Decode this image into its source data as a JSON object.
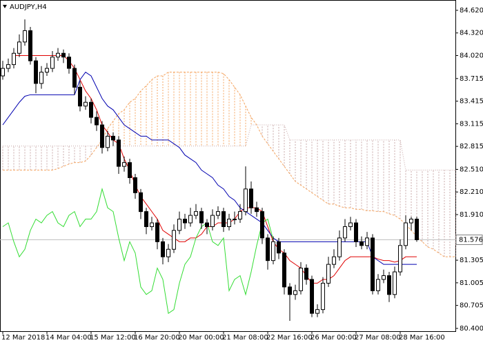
{
  "chart_data": {
    "type": "candlestick",
    "title": "AUDJPY,H4",
    "categories": [
      "12 Mar 2018",
      null,
      null,
      null,
      null,
      null,
      null,
      null,
      "14 Mar 04:00",
      null,
      null,
      null,
      null,
      null,
      null,
      null,
      "15 Mar 12:00",
      null,
      null,
      null,
      null,
      null,
      null,
      null,
      "16 Mar 20:00",
      null,
      null,
      null,
      null,
      null,
      null,
      null,
      "20 Mar 00:00",
      null,
      null,
      null,
      null,
      null,
      null,
      null,
      "21 Mar 08:00",
      null,
      null,
      null,
      null,
      null,
      null,
      null,
      "22 Mar 16:00",
      null,
      null,
      null,
      null,
      null,
      null,
      null,
      "26 Mar 00:00",
      null,
      null,
      null,
      null,
      null,
      null,
      null,
      "27 Mar 08:00",
      null,
      null,
      null,
      null,
      null,
      null,
      null,
      "28 Mar 16:00",
      null,
      null,
      null,
      null,
      null,
      null,
      null,
      null,
      null,
      null
    ],
    "open": [
      83.75,
      83.85,
      83.9,
      84.05,
      84.2,
      84.35,
      83.95,
      83.65,
      83.8,
      83.85,
      84.0,
      84.05,
      84.0,
      83.85,
      83.6,
      83.35,
      83.4,
      83.2,
      83.1,
      82.8,
      82.95,
      82.9,
      82.55,
      82.6,
      82.4,
      82.2,
      81.95,
      81.75,
      81.8,
      81.55,
      81.35,
      81.45,
      81.7,
      81.85,
      81.8,
      81.9,
      81.95,
      81.8,
      81.75,
      81.9,
      81.95,
      81.75,
      81.85,
      81.85,
      81.95,
      82.25,
      82.0,
      81.95,
      81.6,
      81.3,
      81.55,
      81.4,
      80.95,
      80.85,
      80.9,
      81.2,
      81.05,
      80.6,
      80.65,
      81.0,
      81.25,
      81.35,
      81.6,
      81.75,
      81.8,
      81.55,
      81.5,
      81.6,
      80.9,
      81.05,
      81.1,
      80.85,
      81.15,
      81.5,
      81.8,
      81.85,
      null,
      null,
      null,
      null,
      null,
      null,
      null
    ],
    "high": [
      83.95,
      83.98,
      84.12,
      84.3,
      84.5,
      84.4,
      84.0,
      83.88,
      83.92,
      84.08,
      84.12,
      84.1,
      84.05,
      83.9,
      83.68,
      83.48,
      83.45,
      83.28,
      83.15,
      83.02,
      83.0,
      82.95,
      82.68,
      82.65,
      82.45,
      82.25,
      82.0,
      81.88,
      81.85,
      81.6,
      81.52,
      81.78,
      81.95,
      81.92,
      82.0,
      82.05,
      82.0,
      81.85,
      81.98,
      82.02,
      82.0,
      81.92,
      81.95,
      82.05,
      82.55,
      82.35,
      82.08,
      82.0,
      81.65,
      81.62,
      81.6,
      81.45,
      81.0,
      80.98,
      81.28,
      81.25,
      81.1,
      80.72,
      81.08,
      81.35,
      81.45,
      81.7,
      81.85,
      81.88,
      81.85,
      81.62,
      81.68,
      81.65,
      81.12,
      81.18,
      81.15,
      81.22,
      81.58,
      81.9,
      81.88,
      81.88,
      null,
      null,
      null,
      null,
      null,
      null,
      null
    ],
    "low": [
      83.7,
      83.8,
      83.85,
      84.0,
      84.15,
      83.9,
      83.52,
      83.58,
      83.75,
      83.8,
      83.95,
      83.92,
      83.78,
      83.5,
      83.28,
      83.3,
      83.12,
      83.02,
      82.72,
      82.75,
      82.82,
      82.45,
      82.48,
      82.32,
      82.12,
      81.85,
      81.65,
      81.7,
      81.45,
      81.25,
      81.28,
      81.4,
      81.65,
      81.72,
      81.75,
      81.85,
      81.72,
      81.65,
      81.7,
      81.85,
      81.68,
      81.7,
      81.78,
      81.8,
      81.9,
      81.92,
      81.88,
      81.52,
      81.18,
      81.25,
      81.32,
      80.85,
      80.5,
      80.78,
      80.85,
      80.98,
      80.55,
      80.55,
      80.6,
      80.95,
      81.2,
      81.3,
      81.55,
      81.7,
      81.48,
      81.45,
      81.45,
      80.85,
      80.85,
      81.0,
      80.75,
      80.8,
      81.1,
      81.45,
      81.7,
      81.55,
      null,
      null,
      null,
      null,
      null,
      null,
      null
    ],
    "close": [
      83.85,
      83.9,
      84.05,
      84.2,
      84.35,
      83.95,
      83.65,
      83.8,
      83.85,
      84.0,
      84.05,
      84.0,
      83.85,
      83.6,
      83.35,
      83.4,
      83.2,
      83.1,
      82.8,
      82.95,
      82.9,
      82.55,
      82.6,
      82.4,
      82.2,
      81.95,
      81.75,
      81.8,
      81.55,
      81.35,
      81.45,
      81.7,
      81.85,
      81.8,
      81.9,
      81.95,
      81.8,
      81.75,
      81.9,
      81.95,
      81.75,
      81.85,
      81.85,
      81.95,
      82.25,
      82.0,
      81.95,
      81.6,
      81.3,
      81.55,
      81.4,
      80.95,
      80.85,
      80.9,
      81.2,
      81.05,
      80.6,
      80.65,
      81.0,
      81.25,
      81.35,
      81.6,
      81.75,
      81.8,
      81.55,
      81.5,
      81.6,
      80.9,
      81.05,
      81.1,
      80.85,
      81.15,
      81.5,
      81.8,
      81.85,
      81.576,
      null,
      null,
      null,
      null,
      null,
      null,
      null
    ],
    "series": [
      {
        "color": "#e00000",
        "values": [
          null,
          null,
          84.02,
          84.02,
          84.02,
          84.02,
          84.02,
          84.02,
          84.02,
          84.02,
          84.02,
          84.02,
          83.95,
          83.85,
          83.7,
          83.55,
          83.45,
          83.3,
          83.1,
          83.0,
          82.9,
          82.85,
          82.65,
          82.5,
          82.3,
          82.15,
          82.05,
          81.95,
          81.85,
          81.7,
          81.65,
          81.6,
          81.55,
          81.55,
          81.6,
          81.6,
          81.65,
          81.75,
          81.75,
          81.8,
          81.8,
          81.8,
          81.85,
          81.95,
          82.0,
          82.0,
          82.0,
          81.95,
          81.75,
          81.55,
          81.45,
          81.4,
          81.3,
          81.25,
          81.2,
          81.1,
          81.0,
          81.0,
          81.05,
          81.05,
          81.1,
          81.2,
          81.3,
          81.35,
          81.35,
          81.35,
          81.35,
          81.35,
          81.32,
          81.3,
          81.3,
          81.28,
          81.3,
          81.35,
          81.35,
          81.35,
          null,
          null,
          null,
          null,
          null,
          null,
          null
        ]
      },
      {
        "color": "#0000b0",
        "values": [
          83.1,
          83.2,
          83.3,
          83.4,
          83.48,
          83.5,
          83.5,
          83.5,
          83.5,
          83.5,
          83.5,
          83.5,
          83.5,
          83.5,
          83.7,
          83.8,
          83.75,
          83.6,
          83.45,
          83.35,
          83.3,
          83.2,
          83.1,
          83.05,
          83.0,
          82.95,
          82.95,
          82.9,
          82.9,
          82.9,
          82.9,
          82.85,
          82.8,
          82.7,
          82.65,
          82.6,
          82.5,
          82.45,
          82.4,
          82.3,
          82.25,
          82.15,
          82.1,
          82.0,
          81.95,
          81.9,
          81.85,
          81.8,
          81.7,
          81.6,
          81.55,
          81.55,
          81.55,
          81.55,
          81.55,
          81.55,
          81.55,
          81.55,
          81.55,
          81.55,
          81.55,
          81.55,
          81.55,
          81.55,
          81.55,
          81.55,
          81.55,
          81.35,
          81.3,
          81.25,
          81.25,
          81.25,
          81.25,
          81.25,
          81.25,
          81.25,
          null,
          null,
          null,
          null,
          null,
          null,
          null
        ]
      },
      {
        "color": "#33dd33",
        "values": [
          81.75,
          81.8,
          81.55,
          81.35,
          81.45,
          81.7,
          81.85,
          81.8,
          81.9,
          81.95,
          81.8,
          81.75,
          81.9,
          81.95,
          81.75,
          81.85,
          81.85,
          81.95,
          82.25,
          82.0,
          81.95,
          81.6,
          81.3,
          81.55,
          81.4,
          80.95,
          80.85,
          80.9,
          81.2,
          81.05,
          80.6,
          80.65,
          81.0,
          81.25,
          81.35,
          81.6,
          81.75,
          81.8,
          81.55,
          81.5,
          81.6,
          80.9,
          81.05,
          81.1,
          80.85,
          81.15,
          81.5,
          81.8,
          81.85,
          81.576,
          null,
          null,
          null,
          null,
          null,
          null,
          null,
          null,
          null,
          null,
          null,
          null,
          null,
          null,
          null,
          null,
          null,
          null,
          null,
          null,
          null,
          null,
          null,
          null,
          null,
          null,
          null,
          null,
          null,
          null,
          null,
          null,
          null
        ]
      }
    ],
    "cloud": {
      "color_a": "#f4a460",
      "color_b": "#c8a8a8",
      "span_a": [
        82.5,
        82.5,
        82.5,
        82.5,
        82.5,
        82.5,
        82.5,
        82.5,
        82.5,
        82.5,
        82.52,
        82.55,
        82.58,
        82.6,
        82.6,
        82.62,
        82.7,
        82.8,
        82.9,
        83.05,
        83.15,
        83.25,
        83.3,
        83.4,
        83.45,
        83.55,
        83.62,
        83.7,
        83.75,
        83.75,
        83.8,
        83.8,
        83.8,
        83.8,
        83.8,
        83.8,
        83.8,
        83.8,
        83.8,
        83.8,
        83.78,
        83.7,
        83.6,
        83.5,
        83.35,
        83.2,
        83.1,
        82.95,
        82.85,
        82.75,
        82.65,
        82.55,
        82.45,
        82.35,
        82.3,
        82.25,
        82.2,
        82.15,
        82.1,
        82.05,
        82.05,
        82.02,
        82.0,
        82.0,
        81.98,
        81.98,
        81.96,
        81.96,
        81.95,
        81.95,
        81.92,
        81.9,
        81.85,
        81.78,
        81.7,
        81.62,
        81.55,
        81.48,
        81.45,
        81.4,
        81.35,
        81.35,
        81.35
      ],
      "span_b": [
        82.82,
        82.82,
        82.82,
        82.82,
        82.82,
        82.82,
        82.82,
        82.82,
        82.82,
        82.82,
        82.82,
        82.82,
        82.82,
        82.82,
        82.82,
        82.82,
        82.82,
        82.82,
        82.82,
        82.82,
        82.82,
        82.82,
        82.82,
        82.82,
        82.82,
        82.82,
        82.82,
        82.82,
        82.82,
        82.82,
        82.82,
        82.82,
        82.82,
        82.82,
        82.82,
        82.82,
        82.82,
        82.82,
        82.82,
        82.82,
        82.82,
        82.82,
        82.82,
        82.82,
        82.82,
        83.1,
        83.1,
        83.1,
        83.1,
        83.1,
        83.1,
        83.1,
        82.9,
        82.9,
        82.9,
        82.9,
        82.9,
        82.9,
        82.9,
        82.9,
        82.9,
        82.9,
        82.9,
        82.9,
        82.9,
        82.9,
        82.9,
        82.9,
        82.9,
        82.9,
        82.9,
        82.9,
        82.9,
        82.5,
        82.5,
        82.5,
        82.5,
        82.5,
        82.5,
        82.5,
        82.5,
        82.5,
        82.5
      ]
    },
    "last": {
      "value": 81.576,
      "label": "81.576"
    },
    "ylim": [
      80.363,
      84.757
    ],
    "yticks": [
      {
        "value": 84.62,
        "label": "84.620"
      },
      {
        "value": 84.32,
        "label": "84.320"
      },
      {
        "value": 84.02,
        "label": "84.020"
      },
      83.715,
      83.415,
      83.115,
      82.815,
      {
        "value": 82.51,
        "label": "82.510"
      },
      {
        "value": 82.21,
        "label": "82.210"
      },
      {
        "value": 81.91,
        "label": "81.910"
      },
      81.305,
      81.005,
      80.705,
      {
        "value": 80.4,
        "label": "80.400"
      }
    ]
  }
}
